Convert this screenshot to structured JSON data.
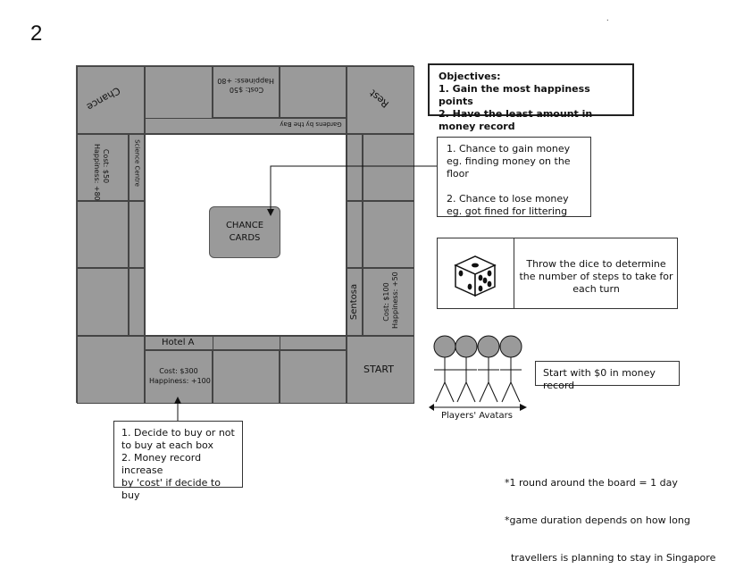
{
  "page_number": "2",
  "dot": ".",
  "board": {
    "top_left_corner": "Chance",
    "top_right_corner": "Rest",
    "top_cell_2": {
      "cost": "Cost: $50",
      "happiness": "Happiness: +80"
    },
    "top_cell_2_sub": "Gardens by the Bay",
    "left_cell_1": {
      "cost": "Cost: $50",
      "happiness": "Happiness: +80"
    },
    "left_cell_1_sub": "Science Centre",
    "right_cell_3": "Sentosa",
    "right_cell_3_detail": {
      "cost": "Cost: $100",
      "happiness": "Happiness: +50"
    },
    "bottom_cell_2_label": "Hotel A",
    "bottom_cell_2": {
      "cost": "Cost: $300",
      "happiness": "Happiness: +100"
    },
    "start": "START",
    "chance_cards": [
      "CHANCE",
      "CARDS"
    ]
  },
  "objectives": {
    "title": "Objectives:",
    "items": [
      "1. Gain the most happiness points",
      "2. Have the least amount in money record"
    ]
  },
  "chance_info": {
    "lines": [
      "1. Chance to gain money",
      "eg. finding money on the floor",
      "",
      "2. Chance to lose money",
      "eg. got fined for littering"
    ]
  },
  "dice": {
    "text": "Throw the dice to determine the number of steps to take for each turn"
  },
  "start_info": "Start with $0 in money record",
  "avatars_label": "Players' Avatars",
  "buy_info": {
    "lines": [
      "1. Decide to buy or not",
      "to buy at each box",
      "2. Money record increase",
      "by 'cost' if decide to buy"
    ]
  },
  "notes": [
    "*1 round around the board = 1 day",
    "*game duration depends on how long",
    "  travellers is planning to stay in Singapore"
  ]
}
